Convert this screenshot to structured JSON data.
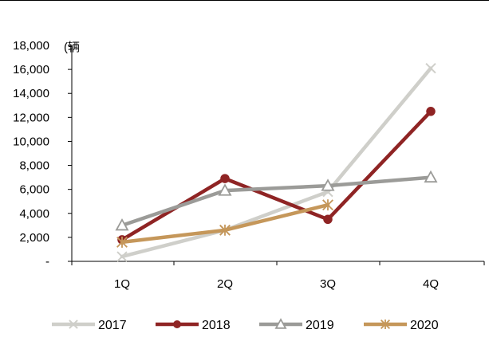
{
  "chart_data": {
    "type": "line",
    "categories": [
      "1Q",
      "2Q",
      "3Q",
      "4Q"
    ],
    "unit_label": "(辆",
    "ylim": [
      0,
      18000
    ],
    "y_ticks": [
      0,
      2000,
      4000,
      6000,
      8000,
      10000,
      12000,
      14000,
      16000,
      18000
    ],
    "y_tick_labels": [
      "-",
      "2,000",
      "4,000",
      "6,000",
      "8,000",
      "10,000",
      "12,000",
      "14,000",
      "16,000",
      "18,000"
    ],
    "legend_position": "bottom",
    "grid": false,
    "series": [
      {
        "name": "2017",
        "values": [
          400,
          2600,
          5800,
          16100
        ],
        "color": "#cfcfca",
        "marker": "x"
      },
      {
        "name": "2018",
        "values": [
          1800,
          6900,
          3500,
          12500
        ],
        "color": "#8f2424",
        "marker": "circle"
      },
      {
        "name": "2019",
        "values": [
          3000,
          5900,
          6300,
          7000
        ],
        "color": "#9b9b98",
        "marker": "triangle"
      },
      {
        "name": "2020",
        "values": [
          1600,
          2600,
          4700,
          null
        ],
        "color": "#c5975a",
        "marker": "asterisk"
      }
    ]
  }
}
